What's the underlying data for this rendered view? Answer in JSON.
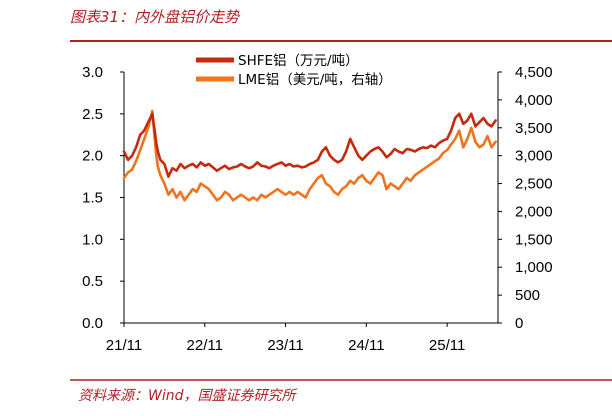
{
  "header": {
    "title": "图表31：内外盘铝价走势"
  },
  "footer": {
    "source": "资料来源：Wind，国盛证券研究所"
  },
  "colors": {
    "shfe": "#c62a0e",
    "lme": "#f0731e",
    "brand_red": "#b11f24"
  },
  "chart_data": {
    "type": "line",
    "title": "",
    "x": [
      "21/11",
      "22/11",
      "23/11",
      "24/11",
      "25/11"
    ],
    "x_tick_labels": [
      "21/11",
      "22/11",
      "23/11",
      "24/11",
      "25/11"
    ],
    "y_left_ticks": [
      "0.0",
      "0.5",
      "1.0",
      "1.5",
      "2.0",
      "2.5",
      "3.0"
    ],
    "y_right_ticks": [
      "0",
      "500",
      "1,000",
      "1,500",
      "2,000",
      "2,500",
      "3,000",
      "3,500",
      "4,000",
      "4,500"
    ],
    "ylim_left": [
      0,
      3.0
    ],
    "ylim_right": [
      0,
      4500
    ],
    "legend_position": "top-center",
    "series": [
      {
        "name": "SHFE铝（万元/吨）",
        "axis": "left",
        "x": [
          0,
          0.05,
          0.1,
          0.15,
          0.2,
          0.25,
          0.3,
          0.35,
          0.38,
          0.4,
          0.42,
          0.45,
          0.5,
          0.55,
          0.6,
          0.65,
          0.7,
          0.75,
          0.8,
          0.85,
          0.9,
          0.95,
          1.0,
          1.05,
          1.1,
          1.15,
          1.2,
          1.25,
          1.3,
          1.35,
          1.4,
          1.45,
          1.5,
          1.55,
          1.6,
          1.65,
          1.7,
          1.75,
          1.8,
          1.85,
          1.9,
          1.95,
          2.0,
          2.05,
          2.1,
          2.15,
          2.2,
          2.25,
          2.3,
          2.35,
          2.4,
          2.45,
          2.5,
          2.55,
          2.6,
          2.65,
          2.7,
          2.75,
          2.8,
          2.85,
          2.9,
          2.95,
          3.0,
          3.05,
          3.1,
          3.15,
          3.2,
          3.25,
          3.3,
          3.35,
          3.4,
          3.45,
          3.5,
          3.55,
          3.6,
          3.65,
          3.7,
          3.75,
          3.8,
          3.85,
          3.9,
          3.95,
          4.0,
          4.05,
          4.1,
          4.15,
          4.2,
          4.25,
          4.3,
          4.35,
          4.4,
          4.45,
          4.5,
          4.55,
          4.6
        ],
        "values": [
          2.05,
          1.95,
          2.0,
          2.1,
          2.25,
          2.3,
          2.4,
          2.5,
          2.3,
          2.15,
          2.05,
          1.95,
          1.9,
          1.75,
          1.85,
          1.82,
          1.9,
          1.85,
          1.88,
          1.9,
          1.86,
          1.92,
          1.88,
          1.9,
          1.86,
          1.82,
          1.85,
          1.88,
          1.84,
          1.86,
          1.87,
          1.9,
          1.87,
          1.85,
          1.87,
          1.92,
          1.88,
          1.87,
          1.85,
          1.88,
          1.9,
          1.92,
          1.88,
          1.9,
          1.87,
          1.88,
          1.86,
          1.87,
          1.9,
          1.92,
          1.95,
          2.05,
          2.1,
          2.0,
          1.95,
          1.92,
          1.95,
          2.05,
          2.2,
          2.1,
          2.0,
          1.95,
          2.0,
          2.05,
          2.08,
          2.1,
          2.05,
          1.98,
          2.02,
          2.08,
          2.05,
          2.03,
          2.08,
          2.07,
          2.05,
          2.08,
          2.1,
          2.09,
          2.12,
          2.1,
          2.15,
          2.18,
          2.2,
          2.3,
          2.45,
          2.5,
          2.38,
          2.42,
          2.5,
          2.35,
          2.4,
          2.45,
          2.38,
          2.35,
          2.42
        ]
      },
      {
        "name": "LME铝（美元/吨，右轴）",
        "axis": "right",
        "x": [
          0,
          0.05,
          0.1,
          0.15,
          0.2,
          0.25,
          0.3,
          0.35,
          0.38,
          0.4,
          0.42,
          0.45,
          0.5,
          0.55,
          0.6,
          0.65,
          0.7,
          0.75,
          0.8,
          0.85,
          0.9,
          0.95,
          1.0,
          1.05,
          1.1,
          1.15,
          1.2,
          1.25,
          1.3,
          1.35,
          1.4,
          1.45,
          1.5,
          1.55,
          1.6,
          1.65,
          1.7,
          1.75,
          1.8,
          1.85,
          1.9,
          1.95,
          2.0,
          2.05,
          2.1,
          2.15,
          2.2,
          2.25,
          2.3,
          2.35,
          2.4,
          2.45,
          2.5,
          2.55,
          2.6,
          2.65,
          2.7,
          2.75,
          2.8,
          2.85,
          2.9,
          2.95,
          3.0,
          3.05,
          3.1,
          3.15,
          3.2,
          3.25,
          3.3,
          3.35,
          3.4,
          3.45,
          3.5,
          3.55,
          3.6,
          3.65,
          3.7,
          3.75,
          3.8,
          3.85,
          3.9,
          3.95,
          4.0,
          4.05,
          4.1,
          4.15,
          4.2,
          4.25,
          4.3,
          4.35,
          4.4,
          4.45,
          4.5,
          4.55,
          4.6
        ],
        "values": [
          2600,
          2700,
          2750,
          2900,
          3100,
          3300,
          3500,
          3800,
          3300,
          3000,
          2800,
          2650,
          2500,
          2300,
          2400,
          2250,
          2350,
          2200,
          2300,
          2400,
          2350,
          2500,
          2450,
          2400,
          2300,
          2200,
          2250,
          2350,
          2300,
          2200,
          2250,
          2300,
          2250,
          2200,
          2250,
          2200,
          2300,
          2250,
          2300,
          2350,
          2400,
          2350,
          2300,
          2350,
          2300,
          2350,
          2300,
          2250,
          2400,
          2500,
          2600,
          2650,
          2500,
          2450,
          2350,
          2300,
          2400,
          2450,
          2550,
          2500,
          2600,
          2650,
          2550,
          2500,
          2600,
          2700,
          2650,
          2400,
          2500,
          2450,
          2400,
          2500,
          2600,
          2550,
          2650,
          2700,
          2750,
          2800,
          2850,
          2900,
          2950,
          3050,
          3100,
          3200,
          3300,
          3450,
          3150,
          3300,
          3500,
          3250,
          3150,
          3200,
          3350,
          3150,
          3250
        ]
      }
    ]
  }
}
